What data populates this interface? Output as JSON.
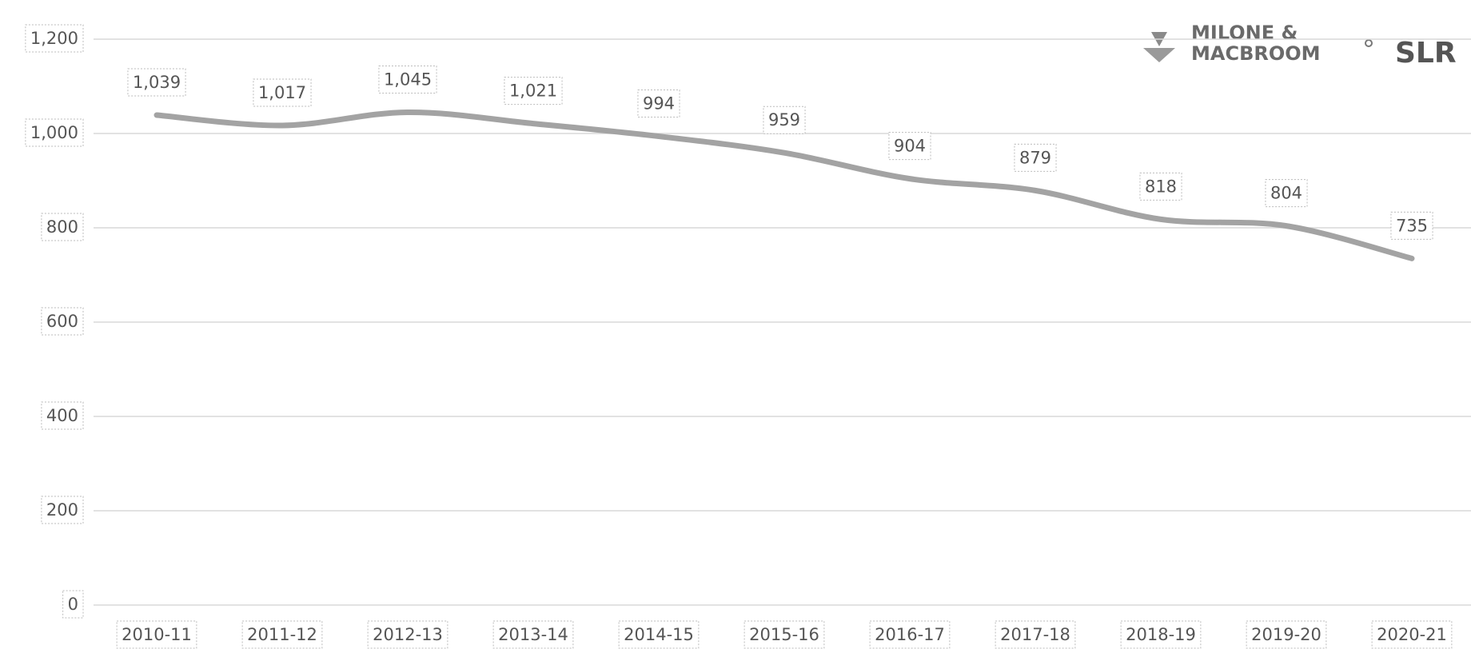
{
  "chart_data": {
    "type": "line",
    "categories": [
      "2010-11",
      "2011-12",
      "2012-13",
      "2013-14",
      "2014-15",
      "2015-16",
      "2016-17",
      "2017-18",
      "2018-19",
      "2019-20",
      "2020-21"
    ],
    "values": [
      1039,
      1017,
      1045,
      1021,
      994,
      959,
      904,
      879,
      818,
      804,
      735
    ],
    "value_labels": [
      "1,039",
      "1,017",
      "1,045",
      "1,021",
      "994",
      "959",
      "904",
      "879",
      "818",
      "804",
      "735"
    ],
    "color": "#a3a3a3",
    "ylim": [
      0,
      1200
    ],
    "yticks": [
      0,
      200,
      400,
      600,
      800,
      {
        "value": 1000,
        "label": "1,000"
      },
      {
        "value": 1200,
        "label": "1,200"
      }
    ],
    "grid": true
  },
  "logo": {
    "line1": "MILONE &",
    "line2": "MACBROOM",
    "mark": "SLR"
  }
}
